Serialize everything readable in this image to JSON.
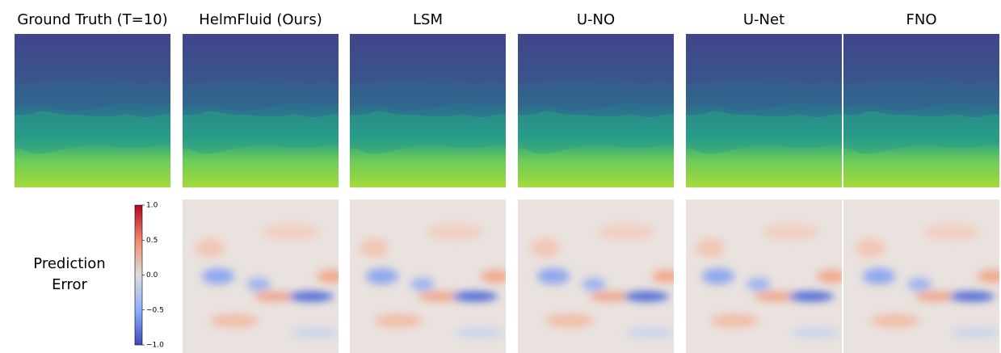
{
  "columns": [
    "Ground Truth (T=10)",
    "HelmFluid (Ours)",
    "LSM",
    "U-NO",
    "U-Net",
    "FNO"
  ],
  "row_label": [
    "Prediction",
    "Error"
  ],
  "colorbar": {
    "lim": [
      -1,
      1
    ],
    "ticks": [
      {
        "value": 1,
        "label": "1.0"
      },
      {
        "value": 0.5,
        "label": "0.5"
      },
      {
        "value": 0,
        "label": "0.0"
      },
      {
        "value": -0.5,
        "label": "−0.5"
      },
      {
        "value": -1,
        "label": "−1.0"
      }
    ]
  }
}
